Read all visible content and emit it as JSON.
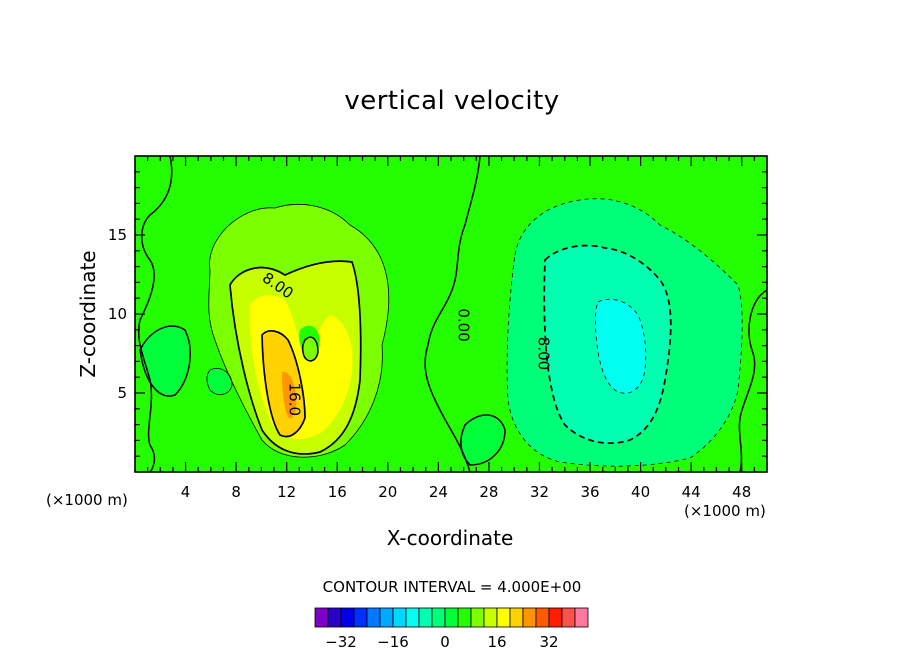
{
  "chart_data": {
    "type": "contour",
    "title": "vertical velocity",
    "xlabel": "X-coordinate",
    "ylabel": "Z-coordinate",
    "x_unit": "(×1000 m)",
    "y_unit": "(×1000 m)",
    "xlim": [
      0,
      50
    ],
    "ylim": [
      0,
      20
    ],
    "x_ticks": [
      4,
      8,
      12,
      16,
      20,
      24,
      28,
      32,
      36,
      40,
      44,
      48
    ],
    "y_ticks": [
      5,
      10,
      15
    ],
    "contour_interval_label": "CONTOUR INTERVAL = 4.000E+00",
    "contour_interval": 4,
    "contour_labels": [
      {
        "text": "8.00",
        "x": 11.3,
        "y": 11.8
      },
      {
        "text": "16.0",
        "x": 12.6,
        "y": 4.6
      },
      {
        "text": "0.00",
        "x": 26.0,
        "y": 9.3
      },
      {
        "text": "8.00",
        "x": 32.3,
        "y": 7.5
      }
    ],
    "colorbar": {
      "levels": [
        -36,
        -32,
        -28,
        -24,
        -20,
        -16,
        -12,
        -8,
        -4,
        0,
        4,
        8,
        12,
        16,
        20,
        24,
        28,
        32,
        36,
        40
      ],
      "tick_labels": [
        "−32",
        "−16",
        "0",
        "16",
        "32"
      ],
      "tick_values": [
        -32,
        -16,
        0,
        16,
        32
      ],
      "colors": [
        "#7d00c8",
        "#2800c8",
        "#0000e6",
        "#0030ff",
        "#0078ff",
        "#00a8ff",
        "#00d7ff",
        "#00fff0",
        "#00ffb0",
        "#00ff78",
        "#00ff38",
        "#23ff00",
        "#7cff00",
        "#c8ff00",
        "#ffff00",
        "#ffd200",
        "#ff9600",
        "#ff5a00",
        "#ff1e00",
        "#ff5050",
        "#ff78a0"
      ]
    }
  }
}
